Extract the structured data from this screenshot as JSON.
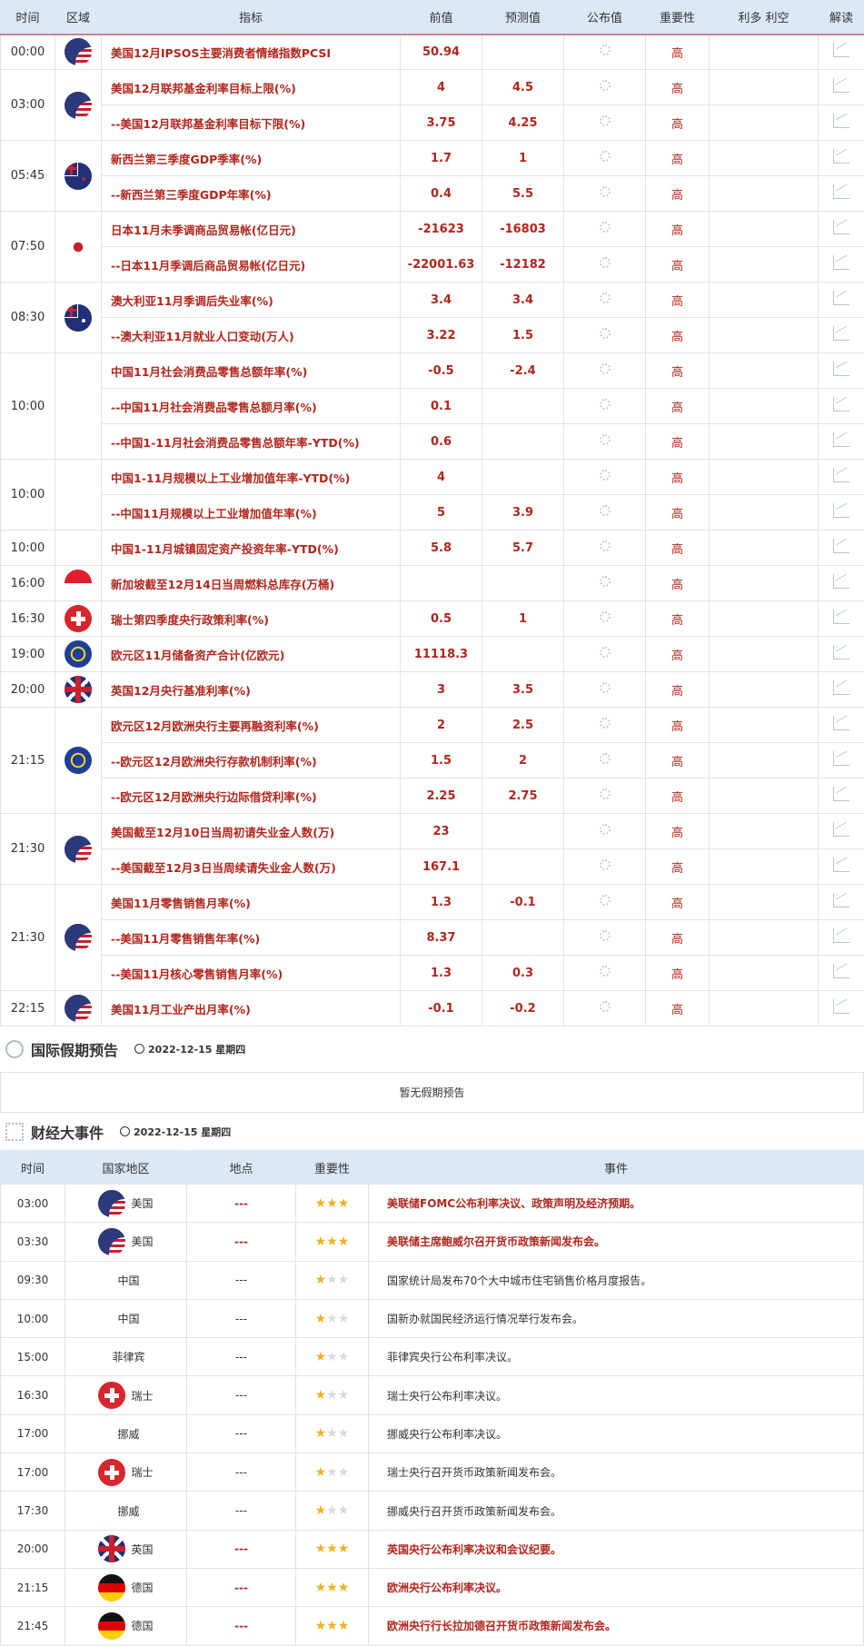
{
  "calendar": {
    "headers": [
      "时间",
      "区域",
      "指标",
      "前值",
      "预测值",
      "公布值",
      "重要性",
      "利多 利空",
      "解读"
    ],
    "groups": [
      {
        "time": "00:00",
        "flag": "us",
        "rows": [
          {
            "name": "美国12月IPSOS主要消费者情绪指数PCSI",
            "prev": "50.94",
            "fc": "",
            "imp": "高"
          }
        ]
      },
      {
        "time": "03:00",
        "flag": "us",
        "rows": [
          {
            "name": "美国12月联邦基金利率目标上限(%)",
            "prev": "4",
            "fc": "4.5",
            "imp": "高"
          },
          {
            "name": "--美国12月联邦基金利率目标下限(%)",
            "prev": "3.75",
            "fc": "4.25",
            "imp": "高"
          }
        ]
      },
      {
        "time": "05:45",
        "flag": "nz",
        "rows": [
          {
            "name": "新西兰第三季度GDP季率(%)",
            "prev": "1.7",
            "fc": "1",
            "imp": "高"
          },
          {
            "name": "--新西兰第三季度GDP年率(%)",
            "prev": "0.4",
            "fc": "5.5",
            "imp": "高"
          }
        ]
      },
      {
        "time": "07:50",
        "flag": "jp",
        "rows": [
          {
            "name": "日本11月未季调商品贸易帐(亿日元)",
            "prev": "-21623",
            "fc": "-16803",
            "imp": "高"
          },
          {
            "name": "--日本11月季调后商品贸易帐(亿日元)",
            "prev": "-22001.63",
            "fc": "-12182",
            "imp": "高"
          }
        ]
      },
      {
        "time": "08:30",
        "flag": "au",
        "rows": [
          {
            "name": "澳大利亚11月季调后失业率(%)",
            "prev": "3.4",
            "fc": "3.4",
            "imp": "高"
          },
          {
            "name": "--澳大利亚11月就业人口变动(万人)",
            "prev": "3.22",
            "fc": "1.5",
            "imp": "高"
          }
        ]
      },
      {
        "time": "10:00",
        "flag": "",
        "rows": [
          {
            "name": "中国11月社会消费品零售总额年率(%)",
            "prev": "-0.5",
            "fc": "-2.4",
            "imp": "高"
          },
          {
            "name": "--中国11月社会消费品零售总额月率(%)",
            "prev": "0.1",
            "fc": "",
            "imp": "高"
          },
          {
            "name": "--中国1-11月社会消费品零售总额年率-YTD(%)",
            "prev": "0.6",
            "fc": "",
            "imp": "高"
          }
        ]
      },
      {
        "time": "10:00",
        "flag": "",
        "rows": [
          {
            "name": "中国1-11月规模以上工业增加值年率-YTD(%)",
            "prev": "4",
            "fc": "",
            "imp": "高"
          },
          {
            "name": "--中国11月规模以上工业增加值年率(%)",
            "prev": "5",
            "fc": "3.9",
            "imp": "高"
          }
        ]
      },
      {
        "time": "10:00",
        "flag": "",
        "rows": [
          {
            "name": "中国1-11月城镇固定资产投资年率-YTD(%)",
            "prev": "5.8",
            "fc": "5.7",
            "imp": "高"
          }
        ]
      },
      {
        "time": "16:00",
        "flag": "sg",
        "rows": [
          {
            "name": "新加坡截至12月14日当周燃料总库存(万桶)",
            "prev": "",
            "fc": "",
            "imp": "高"
          }
        ]
      },
      {
        "time": "16:30",
        "flag": "ch",
        "rows": [
          {
            "name": "瑞士第四季度央行政策利率(%)",
            "prev": "0.5",
            "fc": "1",
            "imp": "高"
          }
        ]
      },
      {
        "time": "19:00",
        "flag": "eu",
        "rows": [
          {
            "name": "欧元区11月储备资产合计(亿欧元)",
            "prev": "11118.3",
            "fc": "",
            "imp": "高"
          }
        ]
      },
      {
        "time": "20:00",
        "flag": "gb",
        "rows": [
          {
            "name": "英国12月央行基准利率(%)",
            "prev": "3",
            "fc": "3.5",
            "imp": "高"
          }
        ]
      },
      {
        "time": "21:15",
        "flag": "eu",
        "rows": [
          {
            "name": "欧元区12月欧洲央行主要再融资利率(%)",
            "prev": "2",
            "fc": "2.5",
            "imp": "高"
          },
          {
            "name": "--欧元区12月欧洲央行存款机制利率(%)",
            "prev": "1.5",
            "fc": "2",
            "imp": "高"
          },
          {
            "name": "--欧元区12月欧洲央行边际借贷利率(%)",
            "prev": "2.25",
            "fc": "2.75",
            "imp": "高"
          }
        ]
      },
      {
        "time": "21:30",
        "flag": "us",
        "rows": [
          {
            "name": "美国截至12月10日当周初请失业金人数(万)",
            "prev": "23",
            "fc": "",
            "imp": "高"
          },
          {
            "name": "--美国截至12月3日当周续请失业金人数(万)",
            "prev": "167.1",
            "fc": "",
            "imp": "高"
          }
        ]
      },
      {
        "time": "21:30",
        "flag": "us",
        "rows": [
          {
            "name": "美国11月零售销售月率(%)",
            "prev": "1.3",
            "fc": "-0.1",
            "imp": "高"
          },
          {
            "name": "--美国11月零售销售年率(%)",
            "prev": "8.37",
            "fc": "",
            "imp": "高"
          },
          {
            "name": "--美国11月核心零售销售月率(%)",
            "prev": "1.3",
            "fc": "0.3",
            "imp": "高"
          }
        ]
      },
      {
        "time": "22:15",
        "flag": "us",
        "rows": [
          {
            "name": "美国11月工业产出月率(%)",
            "prev": "-0.1",
            "fc": "-0.2",
            "imp": "高"
          }
        ]
      }
    ]
  },
  "holiday": {
    "title": "国际假期预告",
    "date": "2022-12-15 星期四",
    "empty": "暂无假期预告"
  },
  "events": {
    "title": "财经大事件",
    "date": "2022-12-15 星期四",
    "headers": [
      "时间",
      "国家地区",
      "地点",
      "重要性",
      "事件"
    ],
    "rows": [
      {
        "time": "03:00",
        "flag": "us",
        "country": "美国",
        "place": "---",
        "stars": 3,
        "event": "美联储FOMC公布利率决议、政策声明及经济预期。"
      },
      {
        "time": "03:30",
        "flag": "us",
        "country": "美国",
        "place": "---",
        "stars": 3,
        "event": "美联储主席鲍威尔召开货币政策新闻发布会。"
      },
      {
        "time": "09:30",
        "flag": "",
        "country": "中国",
        "place": "---",
        "stars": 1,
        "event": "国家统计局发布70个大中城市住宅销售价格月度报告。"
      },
      {
        "time": "10:00",
        "flag": "",
        "country": "中国",
        "place": "---",
        "stars": 1,
        "event": "国新办就国民经济运行情况举行发布会。"
      },
      {
        "time": "15:00",
        "flag": "",
        "country": "菲律宾",
        "place": "---",
        "stars": 1,
        "event": "菲律宾央行公布利率决议。"
      },
      {
        "time": "16:30",
        "flag": "ch",
        "country": "瑞士",
        "place": "---",
        "stars": 1,
        "event": "瑞士央行公布利率决议。"
      },
      {
        "time": "17:00",
        "flag": "",
        "country": "挪威",
        "place": "---",
        "stars": 1,
        "event": "挪威央行公布利率决议。"
      },
      {
        "time": "17:00",
        "flag": "ch",
        "country": "瑞士",
        "place": "---",
        "stars": 1,
        "event": "瑞士央行召开货币政策新闻发布会。"
      },
      {
        "time": "17:30",
        "flag": "",
        "country": "挪威",
        "place": "---",
        "stars": 1,
        "event": "挪威央行召开货币政策新闻发布会。"
      },
      {
        "time": "20:00",
        "flag": "gb",
        "country": "英国",
        "place": "---",
        "stars": 3,
        "event": "英国央行公布利率决议和会议纪要。"
      },
      {
        "time": "21:15",
        "flag": "de",
        "country": "德国",
        "place": "---",
        "stars": 3,
        "event": "欧洲央行公布利率决议。"
      },
      {
        "time": "21:45",
        "flag": "de",
        "country": "德国",
        "place": "---",
        "stars": 3,
        "event": "欧洲央行行长拉加德召开货币政策新闻发布会。"
      }
    ]
  },
  "colors": {
    "accent_red": "#b2261c",
    "header_bg": "#dce8f8",
    "star": "#f2b01e"
  }
}
